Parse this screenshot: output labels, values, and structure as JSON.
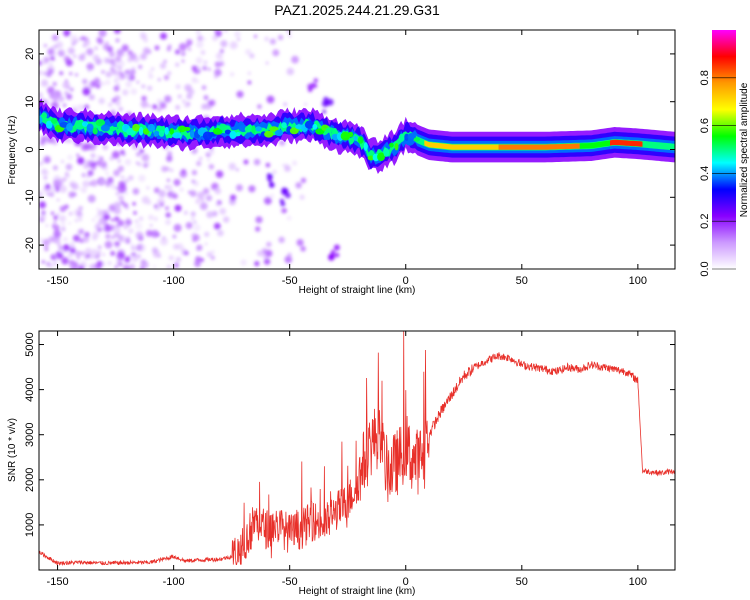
{
  "title": "PAZ1.2025.244.21.29.G31",
  "chart_data": [
    {
      "type": "heatmap",
      "name": "spectrogram",
      "title": "PAZ1.2025.244.21.29.G31",
      "xlabel": "Height of straight line (km)",
      "ylabel": "Frequency (Hz)",
      "xlim": [
        -158,
        116
      ],
      "ylim": [
        -25,
        25
      ],
      "xticks": [
        -150,
        -100,
        -50,
        0,
        50,
        100
      ],
      "yticks": [
        -20,
        -10,
        0,
        10,
        20
      ],
      "ridge": [
        [
          -158,
          7
        ],
        [
          -150,
          5
        ],
        [
          -140,
          5
        ],
        [
          -130,
          4.5
        ],
        [
          -120,
          4
        ],
        [
          -110,
          4
        ],
        [
          -100,
          3.5
        ],
        [
          -90,
          3.5
        ],
        [
          -80,
          4
        ],
        [
          -70,
          4
        ],
        [
          -60,
          4
        ],
        [
          -50,
          5
        ],
        [
          -40,
          5
        ],
        [
          -30,
          3
        ],
        [
          -20,
          2
        ],
        [
          -15,
          -1.5
        ],
        [
          -10,
          -1
        ],
        [
          -5,
          0.5
        ],
        [
          0,
          3
        ],
        [
          5,
          2
        ],
        [
          10,
          1
        ],
        [
          20,
          0.5
        ],
        [
          40,
          0.5
        ],
        [
          60,
          0.5
        ],
        [
          80,
          0.8
        ],
        [
          90,
          1.5
        ],
        [
          100,
          1.2
        ],
        [
          116,
          0.5
        ]
      ],
      "colorbar": {
        "label": "Normalized spectral amplitude",
        "range": [
          0,
          1
        ],
        "ticks": [
          "0.0",
          "0.2",
          "0.4",
          "0.6",
          "0.8"
        ],
        "colors": [
          "#ffffff",
          "#cc99ff",
          "#8800ff",
          "#0000ff",
          "#00ffff",
          "#00ff00",
          "#ffff00",
          "#ff9900",
          "#ff0000",
          "#ff00ff"
        ]
      }
    },
    {
      "type": "line",
      "name": "snr",
      "xlabel": "Height of straight line (km)",
      "ylabel": "SNR (10 * v/v)",
      "xlim": [
        -158,
        116
      ],
      "ylim": [
        0,
        5300
      ],
      "xticks": [
        -150,
        -100,
        -50,
        0,
        50,
        100
      ],
      "yticks": [
        1000,
        2000,
        3000,
        4000,
        5000
      ],
      "color": "#e8302a",
      "x": [
        -158,
        -150,
        -140,
        -130,
        -120,
        -110,
        -100,
        -95,
        -90,
        -80,
        -75,
        -70,
        -65,
        -60,
        -55,
        -50,
        -45,
        -40,
        -35,
        -30,
        -25,
        -20,
        -18,
        -15,
        -12,
        -10,
        -8,
        -5,
        -2,
        0,
        2,
        5,
        8,
        10,
        15,
        20,
        25,
        30,
        35,
        40,
        45,
        50,
        55,
        60,
        65,
        70,
        75,
        80,
        85,
        90,
        95,
        100,
        102,
        110,
        116
      ],
      "y": [
        400,
        150,
        170,
        150,
        160,
        170,
        300,
        200,
        220,
        240,
        300,
        500,
        1100,
        900,
        1000,
        800,
        900,
        1100,
        1000,
        1300,
        1500,
        2000,
        2400,
        2800,
        3000,
        2600,
        2200,
        2300,
        2500,
        2800,
        2500,
        2400,
        2600,
        3000,
        3500,
        3900,
        4300,
        4500,
        4650,
        4750,
        4700,
        4550,
        4500,
        4450,
        4400,
        4500,
        4450,
        4550,
        4500,
        4450,
        4400,
        4200,
        2200,
        2150,
        2200
      ]
    }
  ]
}
